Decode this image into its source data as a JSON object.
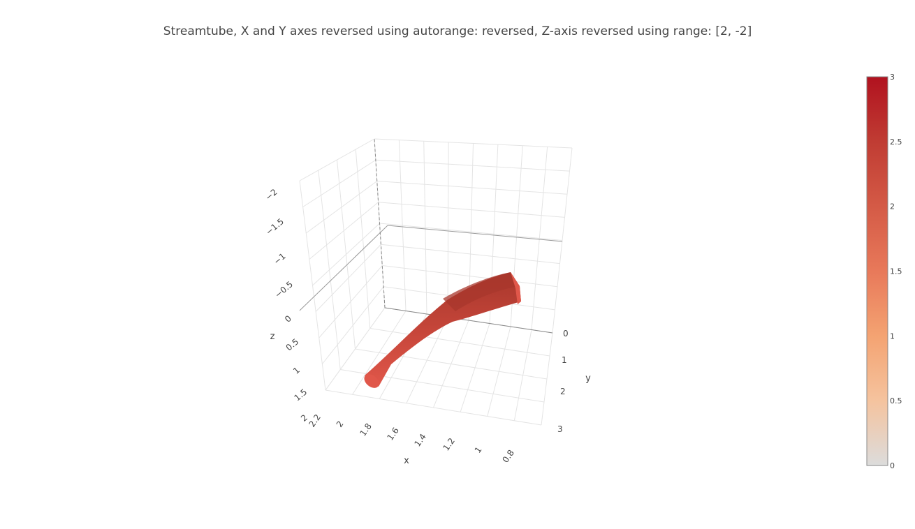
{
  "chart_data": {
    "type": "streamtube",
    "title": "Streamtube, X and Y axes reversed using autorange: reversed, Z-axis reversed using range: [2, -2]",
    "axes": {
      "x": {
        "label": "x",
        "autorange": "reversed",
        "ticks": [
          "2.2",
          "2",
          "1.8",
          "1.6",
          "1.4",
          "1.2",
          "1",
          "0.8"
        ],
        "range": [
          2.3,
          0.7
        ]
      },
      "y": {
        "label": "y",
        "autorange": "reversed",
        "ticks": [
          "0",
          "1",
          "2",
          "3"
        ],
        "range": [
          -0.2,
          3.2
        ]
      },
      "z": {
        "label": "z",
        "range": [
          2,
          -2
        ],
        "ticks": [
          "−2",
          "−1.5",
          "−1",
          "−0.5",
          "0",
          "0.5",
          "1",
          "1.5",
          "2"
        ]
      }
    },
    "colorbar": {
      "ticks": [
        "0",
        "0.5",
        "1",
        "1.5",
        "2",
        "2.5",
        "3"
      ],
      "range": [
        0,
        3
      ],
      "colors": [
        "#dcdcdc",
        "#f5c39e",
        "#f4a372",
        "#e8795a",
        "#d45a46",
        "#c03c33",
        "#b1121f"
      ]
    },
    "tube": {
      "color_dark": "#a8372c",
      "color_mid": "#c8473b",
      "color_light": "#e0574a"
    }
  }
}
